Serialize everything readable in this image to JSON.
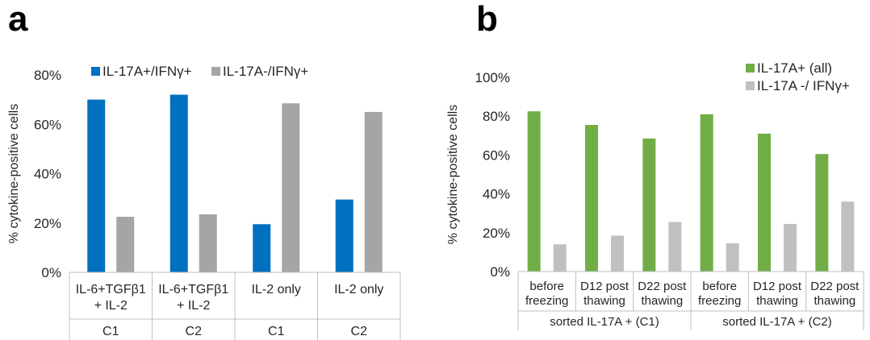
{
  "panels": {
    "a": {
      "letter": "a"
    },
    "b": {
      "letter": "b"
    }
  },
  "chart_data": [
    {
      "type": "bar",
      "panel": "a",
      "ylabel": "% cytokine-positive cells",
      "ylim": [
        0,
        80
      ],
      "yticks": [
        "0%",
        "20%",
        "40%",
        "60%",
        "80%"
      ],
      "categories": [
        [
          "IL-6+TGFβ1",
          "+ IL-2"
        ],
        [
          "IL-6+TGFβ1",
          "+ IL-2"
        ],
        [
          "IL-2 only"
        ],
        [
          "IL-2 only"
        ]
      ],
      "groups": [
        "C1",
        "C2",
        "C1",
        "C2"
      ],
      "series": [
        {
          "name": "IL-17A+/IFNγ+",
          "color": "#0070c0",
          "values": [
            70,
            72,
            19.5,
            29.5
          ]
        },
        {
          "name": "IL-17A-/IFNγ+",
          "color": "#a5a5a5",
          "values": [
            22.5,
            23.5,
            68.5,
            65
          ]
        }
      ],
      "legend_position": "top",
      "grid": false
    },
    {
      "type": "bar",
      "panel": "b",
      "ylabel": "% cytokine-positive cells",
      "ylim": [
        0,
        100
      ],
      "yticks": [
        "0%",
        "20%",
        "40%",
        "60%",
        "80%",
        "100%"
      ],
      "categories": [
        [
          "before",
          "freezing"
        ],
        [
          "D12 post",
          "thawing"
        ],
        [
          "D22 post",
          "thawing"
        ],
        [
          "before",
          "freezing"
        ],
        [
          "D12 post",
          "thawing"
        ],
        [
          "D22 post",
          "thawing"
        ]
      ],
      "groups": [
        "sorted IL-17A +  (C1)",
        "sorted IL-17A + (C2)"
      ],
      "series": [
        {
          "name": "IL-17A+ (all)",
          "color": "#70ad47",
          "values": [
            82.5,
            75.5,
            68.5,
            81,
            71,
            60.5
          ]
        },
        {
          "name": "IL-17A -/ IFNγ+",
          "color": "#c0c0c0",
          "values": [
            14,
            18.5,
            25.5,
            14.5,
            24.5,
            36
          ]
        }
      ],
      "legend_position": "top-right",
      "grid": false
    }
  ]
}
